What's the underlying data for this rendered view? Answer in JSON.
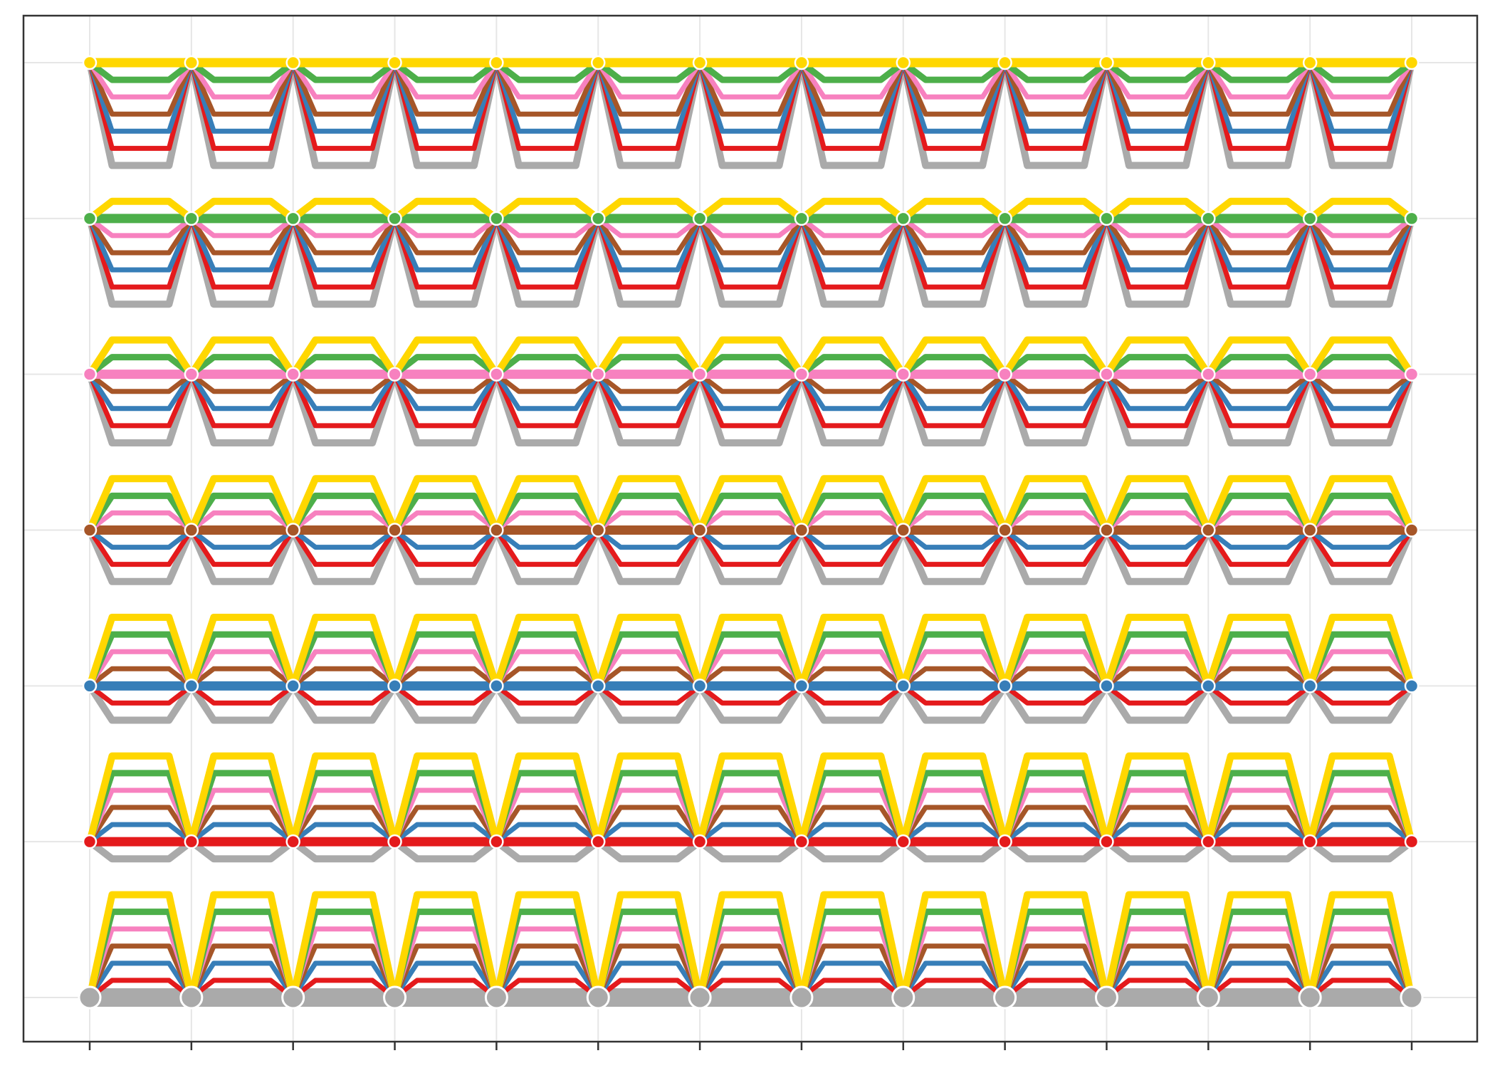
{
  "chart_data": {
    "type": "line",
    "title": "",
    "xlabel": "",
    "ylabel": "",
    "x_ticks": [
      1,
      2,
      3,
      4,
      5,
      6,
      7,
      8,
      9,
      10,
      11,
      12,
      13,
      14
    ],
    "y_ticks": [
      1,
      2,
      3,
      4,
      5,
      6,
      7
    ],
    "xlim": [
      0.3,
      14.7
    ],
    "ylim": [
      0.6,
      7.3
    ],
    "grid": true,
    "legend": "none",
    "tick_labels_shown": false,
    "colors": {
      "grey": "#AAAAAA",
      "red": "#E41A1C",
      "blue": "#377EB8",
      "brown": "#A65628",
      "pink": "#F781BF",
      "green": "#4DAF4A",
      "yellow": "#FFD700",
      "grid": "#E6E6E6",
      "frame": "#333333"
    },
    "series_order": [
      "grey",
      "red",
      "blue",
      "brown",
      "pink",
      "green",
      "yellow"
    ],
    "offset_step": 0.11,
    "hubs": [
      {
        "y": 1,
        "color": "grey"
      },
      {
        "y": 2,
        "color": "red"
      },
      {
        "y": 3,
        "color": "blue"
      },
      {
        "y": 4,
        "color": "brown"
      },
      {
        "y": 5,
        "color": "pink"
      },
      {
        "y": 6,
        "color": "green"
      },
      {
        "y": 7,
        "color": "yellow"
      }
    ]
  }
}
